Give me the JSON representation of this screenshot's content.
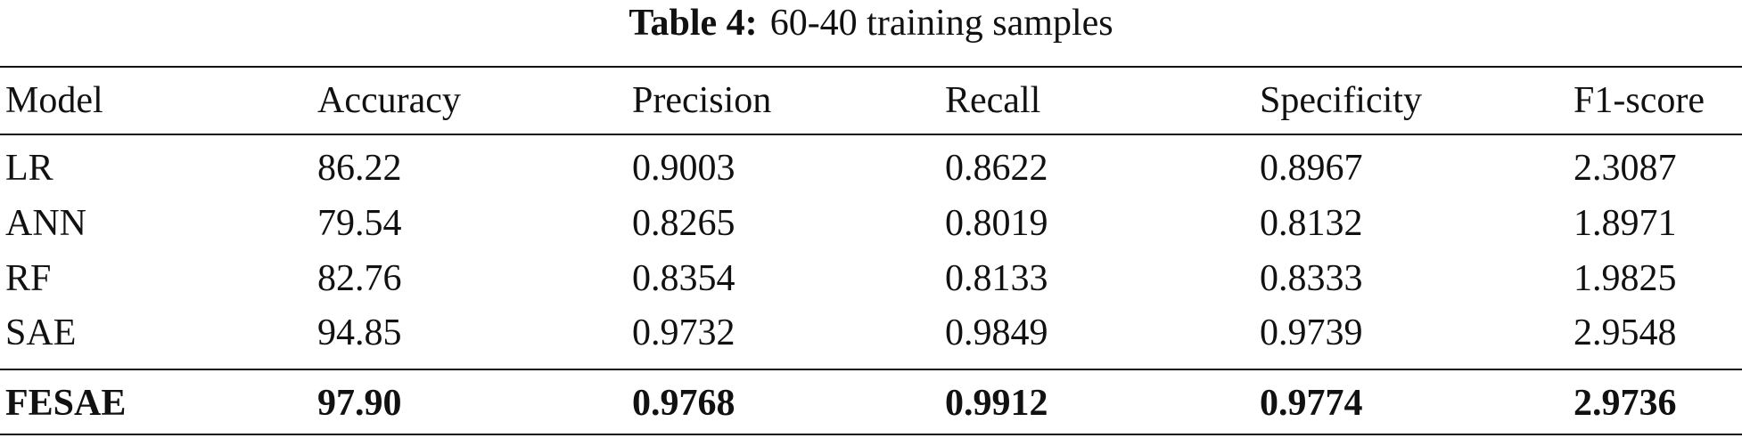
{
  "caption": {
    "label": "Table 4:",
    "text": "60-40 training samples"
  },
  "table": {
    "columns": [
      "Model",
      "Accuracy",
      "Precision",
      "Recall",
      "Specificity",
      "F1-score"
    ],
    "rows": [
      [
        "LR",
        "86.22",
        "0.9003",
        "0.8622",
        "0.8967",
        "2.3087"
      ],
      [
        "ANN",
        "79.54",
        "0.8265",
        "0.8019",
        "0.8132",
        "1.8971"
      ],
      [
        "RF",
        "82.76",
        "0.8354",
        "0.8133",
        "0.8333",
        "1.9825"
      ],
      [
        "SAE",
        "94.85",
        "0.9732",
        "0.9849",
        "0.9739",
        "2.9548"
      ]
    ],
    "best_row": [
      "FESAE",
      "97.90",
      "0.9768",
      "0.9912",
      "0.9774",
      "2.9736"
    ]
  }
}
